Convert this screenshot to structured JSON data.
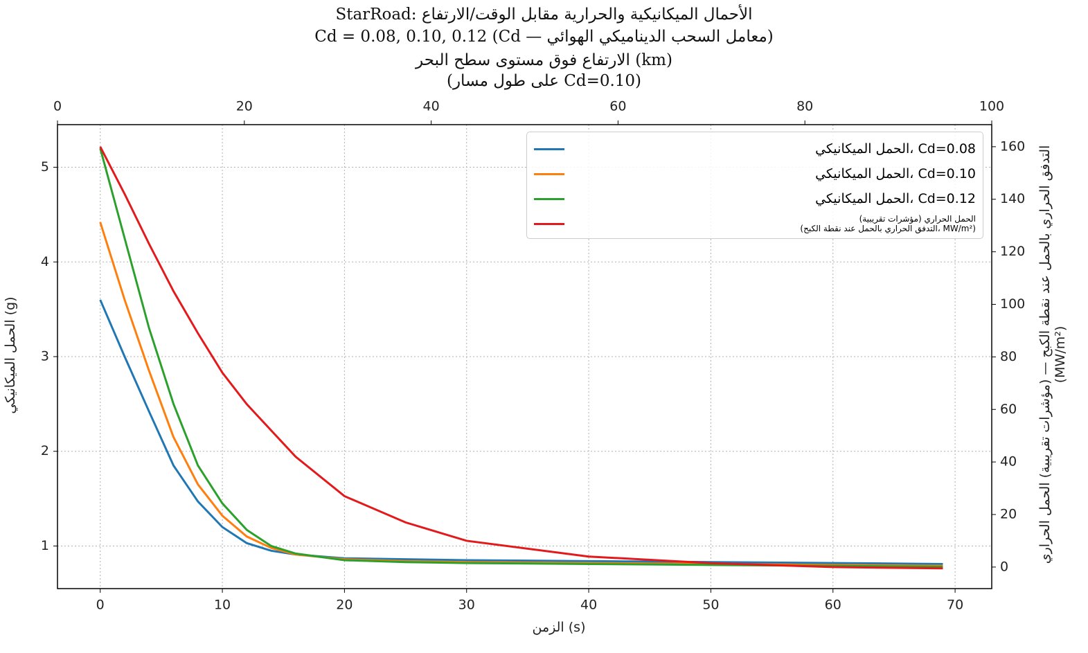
{
  "chart_data": {
    "type": "line",
    "title": "StarRoad: الأحمال الميكانيكية والحرارية مقابل الوقت/الارتفاع",
    "subtitle": "Cd = 0.08, 0.10, 0.12 (Cd — معامل السحب الديناميكي الهوائي)",
    "x2label": "الارتفاع فوق مستوى سطح البحر (km)",
    "x2label_note": "(على طول مسار Cd=0.10)",
    "xlabel": "الزمن (s)",
    "ylabel": "الحمل الميكانيكي (g)",
    "y2label": "التدفق الحراري بالحمل عند نقطة الكبح — (مؤشرات تقريبية) الحمل الحراري\n(MW/m²)",
    "x": [
      0,
      2,
      4,
      6,
      8,
      10,
      12,
      14,
      16,
      20,
      25,
      30,
      40,
      50,
      60,
      69
    ],
    "series": [
      {
        "name": "الحمل الميكانيكي، Cd=0.08",
        "color": "#1f77b4",
        "values": [
          3.6,
          3.0,
          2.42,
          1.85,
          1.47,
          1.2,
          1.03,
          0.95,
          0.91,
          0.87,
          0.86,
          0.85,
          0.84,
          0.83,
          0.82,
          0.81
        ]
      },
      {
        "name": "الحمل الميكانيكي، Cd=0.10",
        "color": "#ff7f0e",
        "values": [
          4.42,
          3.6,
          2.85,
          2.15,
          1.65,
          1.32,
          1.1,
          0.98,
          0.91,
          0.86,
          0.84,
          0.83,
          0.82,
          0.81,
          0.8,
          0.79
        ]
      },
      {
        "name": "الحمل الميكانيكي، Cd=0.12",
        "color": "#2ca02c",
        "values": [
          5.2,
          4.25,
          3.3,
          2.5,
          1.85,
          1.45,
          1.17,
          1.0,
          0.92,
          0.85,
          0.83,
          0.82,
          0.81,
          0.8,
          0.79,
          0.78
        ]
      },
      {
        "name": "الحمل الحراري (مؤشرات تقريبية)\n(التدفق الحراري بالحمل عند نقطة الكبح، MW/m²)",
        "color": "#e31a1c",
        "axis": "y2",
        "values": [
          160,
          142,
          123,
          105,
          89,
          74,
          62,
          52,
          42,
          27,
          17,
          10,
          4,
          1.5,
          0,
          -0.5
        ]
      }
    ],
    "xlim": [
      -3.5,
      73
    ],
    "xticks": [
      0,
      10,
      20,
      30,
      40,
      50,
      60,
      70
    ],
    "x2lim": [
      0,
      100
    ],
    "x2ticks": [
      0,
      20,
      40,
      60,
      80,
      100
    ],
    "ylim": [
      0.55,
      5.45
    ],
    "yticks": [
      1,
      2,
      3,
      4,
      5
    ],
    "y2lim": [
      -8.2,
      168.4
    ],
    "y2ticks": [
      0,
      20,
      40,
      60,
      80,
      100,
      120,
      140,
      160
    ],
    "grid": true
  }
}
